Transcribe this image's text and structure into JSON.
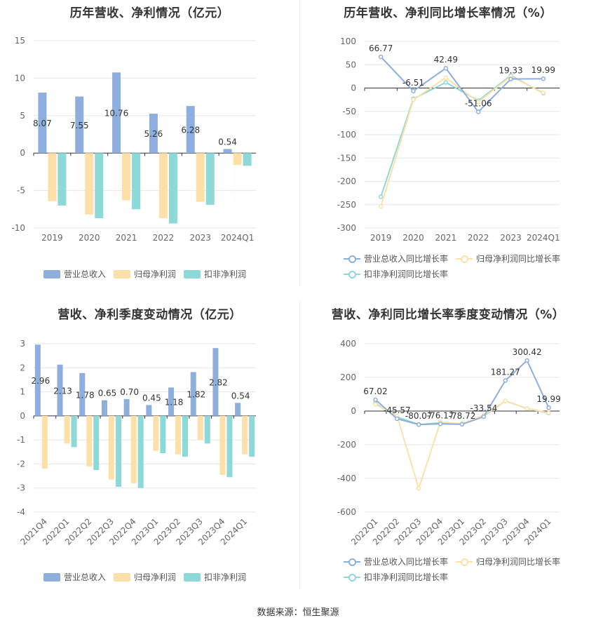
{
  "colors": {
    "revenue": "#8eaedd",
    "profit": "#fde0a8",
    "deducted": "#8dd9d8",
    "grid": "#e6e6e6",
    "axis": "#333333",
    "tick": "#666666"
  },
  "source_text": "数据来源：恒生聚源",
  "chart_data": [
    {
      "type": "bar",
      "title": "历年营收、净利情况（亿元）",
      "categories": [
        "2019",
        "2020",
        "2021",
        "2022",
        "2023",
        "2024Q1"
      ],
      "ylim": [
        -10,
        15
      ],
      "yticks": [
        -10,
        -5,
        0,
        5,
        10,
        15
      ],
      "series": [
        {
          "name": "营业总收入",
          "values": [
            8.07,
            7.55,
            10.76,
            5.26,
            6.28,
            0.54
          ]
        },
        {
          "name": "归母净利润",
          "values": [
            -6.4,
            -8.2,
            -6.3,
            -8.7,
            -6.5,
            -1.6
          ]
        },
        {
          "name": "扣非净利润",
          "values": [
            -7.0,
            -8.7,
            -7.5,
            -9.4,
            -6.9,
            -1.7
          ]
        }
      ],
      "data_labels": [
        "8.07",
        "7.55",
        "10.76",
        "5.26",
        "6.28",
        "0.54"
      ],
      "legend": "bottom"
    },
    {
      "type": "line",
      "title": "历年营收、净利同比增长率情况（%）",
      "categories": [
        "2019",
        "2020",
        "2021",
        "2022",
        "2023",
        "2024Q1"
      ],
      "ylim": [
        -300,
        100
      ],
      "yticks": [
        -300,
        -250,
        -200,
        -150,
        -100,
        -50,
        0,
        50,
        100
      ],
      "series": [
        {
          "name": "营业总收入同比增长率",
          "values": [
            66.77,
            -6.51,
            42.49,
            -51.06,
            19.33,
            19.99
          ]
        },
        {
          "name": "归母净利润同比增长率",
          "values": [
            -254,
            -25,
            22,
            -30,
            25,
            -10
          ]
        },
        {
          "name": "扣非净利润同比增长率",
          "values": [
            -233,
            -23,
            12,
            -27,
            27,
            -11
          ]
        }
      ],
      "data_labels": [
        "66.77",
        "-6.51",
        "42.49",
        "-51.06",
        "19.33",
        "19.99"
      ],
      "legend": "bottom"
    },
    {
      "type": "bar",
      "title": "营收、净利季度变动情况（亿元）",
      "categories": [
        "2021Q4",
        "2022Q1",
        "2022Q2",
        "2022Q3",
        "2022Q4",
        "2023Q1",
        "2023Q2",
        "2023Q3",
        "2023Q4",
        "2024Q1"
      ],
      "ylim": [
        -4,
        3
      ],
      "yticks": [
        -4,
        -3,
        -2,
        -1,
        0,
        1,
        2,
        3
      ],
      "series": [
        {
          "name": "营业总收入",
          "values": [
            2.96,
            2.13,
            1.78,
            0.65,
            0.7,
            0.45,
            1.18,
            1.82,
            2.82,
            0.54
          ]
        },
        {
          "name": "归母净利润",
          "values": [
            -2.2,
            -1.15,
            -2.1,
            -2.65,
            -2.8,
            -1.45,
            -1.6,
            -1.0,
            -2.45,
            -1.6
          ]
        },
        {
          "name": "扣非净利润",
          "values": [
            null,
            -1.3,
            -2.25,
            -2.95,
            -3.0,
            -1.55,
            -1.7,
            -1.15,
            -2.55,
            -1.7
          ]
        }
      ],
      "data_labels": [
        "2.96",
        "2.13",
        "1.78",
        "0.65",
        "0.70",
        "0.45",
        "1.18",
        "1.82",
        "2.82",
        "0.54"
      ],
      "legend": "bottom"
    },
    {
      "type": "line",
      "title": "营收、净利同比增长率季度变动情况（%）",
      "categories": [
        "2022Q1",
        "2022Q2",
        "2022Q3",
        "2022Q4",
        "2023Q1",
        "2023Q2",
        "2023Q3",
        "2023Q4",
        "2024Q1"
      ],
      "ylim": [
        -600,
        400
      ],
      "yticks": [
        -600,
        -400,
        -200,
        0,
        200,
        400
      ],
      "series": [
        {
          "name": "营业总收入同比增长率",
          "values": [
            67.02,
            -45.57,
            -80.07,
            -76.17,
            -78.72,
            -33.54,
            181.27,
            300.42,
            19.99
          ]
        },
        {
          "name": "归母净利润同比增长率",
          "values": [
            40,
            -30,
            -460,
            -65,
            -75,
            -25,
            60,
            15,
            -10
          ]
        },
        {
          "name": "扣非净利润同比增长率",
          "values": [
            45,
            -35,
            -80,
            -70,
            -75,
            -30,
            60,
            15,
            -12
          ]
        }
      ],
      "data_labels": [
        "67.02",
        "-45.57",
        "-80.07",
        "-76.17",
        "-78.72",
        "-33.54",
        "181.27",
        "300.42",
        "19.99"
      ],
      "legend": "bottom"
    }
  ]
}
